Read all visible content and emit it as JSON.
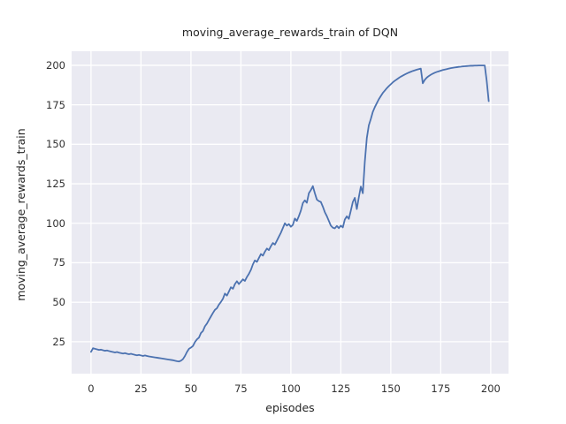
{
  "chart_data": {
    "type": "line",
    "title": "moving_average_rewards_train of DQN",
    "xlabel": "episodes",
    "ylabel": "moving_average_rewards_train",
    "x_ticks": [
      0,
      25,
      50,
      75,
      100,
      125,
      150,
      175,
      200
    ],
    "y_ticks": [
      25,
      50,
      75,
      100,
      125,
      150,
      175,
      200
    ],
    "xlim": [
      -9.7,
      208.9
    ],
    "ylim": [
      4.8,
      208.9
    ],
    "grid": "on",
    "legend": "none",
    "plot_bg_color": "#eaeaf2",
    "grid_color": "#ffffff",
    "line_color": "#4c72b0",
    "text_color": "#262626",
    "series": [
      {
        "name": "moving_average_rewards_train",
        "x": "episode index 0-199",
        "values": [
          18.6,
          20.9,
          20.5,
          20.2,
          19.8,
          20.0,
          19.6,
          19.3,
          19.5,
          19.1,
          18.8,
          18.5,
          18.2,
          18.5,
          18.1,
          17.8,
          17.5,
          17.8,
          17.4,
          17.1,
          17.4,
          17.0,
          16.7,
          16.4,
          16.7,
          16.3,
          16.0,
          16.3,
          16.0,
          15.7,
          15.5,
          15.3,
          15.1,
          14.9,
          14.7,
          14.5,
          14.3,
          14.1,
          13.9,
          13.7,
          13.5,
          13.3,
          13.0,
          12.7,
          12.5,
          13.0,
          14.0,
          16.0,
          18.5,
          20.5,
          21.3,
          22.3,
          24.8,
          26.5,
          27.6,
          30.5,
          31.8,
          34.8,
          36.5,
          38.8,
          41.0,
          43.2,
          45.2,
          46.2,
          48.5,
          50.2,
          52.2,
          55.5,
          54.2,
          56.8,
          59.5,
          58.5,
          61.5,
          63.3,
          61.5,
          63.0,
          64.5,
          63.5,
          66.0,
          68.0,
          70.5,
          74.0,
          76.5,
          75.5,
          78.0,
          80.5,
          79.5,
          82.0,
          84.0,
          83.0,
          85.5,
          87.5,
          86.5,
          89.0,
          91.5,
          94.0,
          97.0,
          100.0,
          98.5,
          99.5,
          97.8,
          99.0,
          103.0,
          101.5,
          104.5,
          108.0,
          112.8,
          114.5,
          113.0,
          119.0,
          121.0,
          123.5,
          119.0,
          115.0,
          114.0,
          113.5,
          110.5,
          107.0,
          104.5,
          101.5,
          98.5,
          97.2,
          96.8,
          98.3,
          96.9,
          98.5,
          97.4,
          102.4,
          104.4,
          102.8,
          108.0,
          113.5,
          116.1,
          109.0,
          116.5,
          123.2,
          119.0,
          139.0,
          154.0,
          162.0,
          166.0,
          170.5,
          173.5,
          176.0,
          178.5,
          180.5,
          182.5,
          184.0,
          185.5,
          186.8,
          188.0,
          189.2,
          190.2,
          191.1,
          192.0,
          192.8,
          193.5,
          194.2,
          194.8,
          195.4,
          195.9,
          196.4,
          196.8,
          197.2,
          197.6,
          197.9,
          188.6,
          190.8,
          192.2,
          193.2,
          194.0,
          194.7,
          195.3,
          195.8,
          196.2,
          196.6,
          197.0,
          197.3,
          197.6,
          197.9,
          198.2,
          198.4,
          198.6,
          198.8,
          199.0,
          199.1,
          199.3,
          199.4,
          199.5,
          199.6,
          199.7,
          199.7,
          199.8,
          199.8,
          199.9,
          199.9,
          199.9,
          199.9,
          190.0,
          177.3
        ]
      }
    ]
  }
}
